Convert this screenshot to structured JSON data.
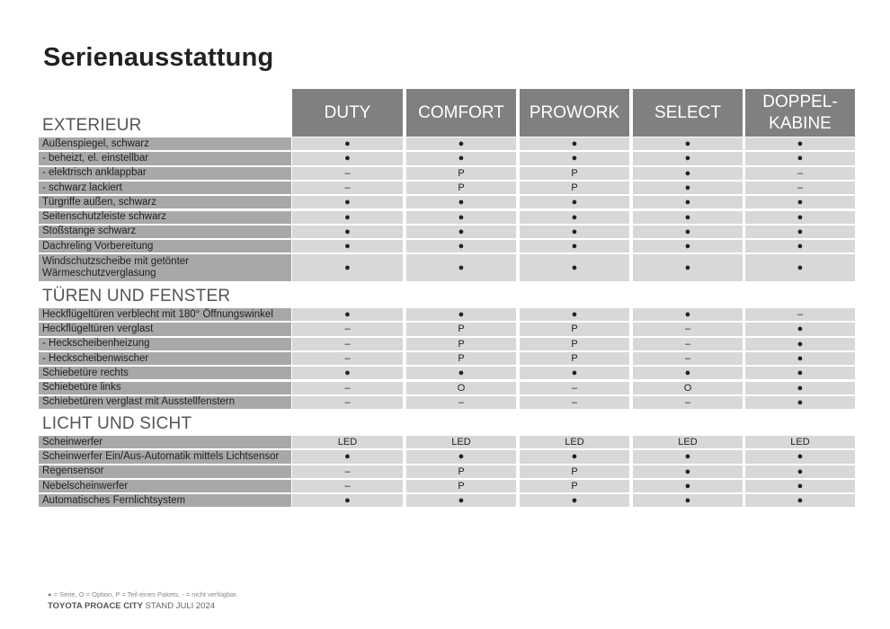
{
  "title": "Serienausstattung",
  "columns": [
    "DUTY",
    "COMFORT",
    "PROWORK",
    "SELECT",
    "DOPPEL-\nKABINE"
  ],
  "sections": [
    {
      "heading": "EXTERIEUR",
      "rows": [
        {
          "label": "Außenspiegel, schwarz",
          "values": [
            "●",
            "●",
            "●",
            "●",
            "●"
          ]
        },
        {
          "label": "- beheizt, el. einstellbar",
          "values": [
            "●",
            "●",
            "●",
            "●",
            "●"
          ]
        },
        {
          "label": "- elektrisch anklappbar",
          "values": [
            "–",
            "P",
            "P",
            "●",
            "–"
          ]
        },
        {
          "label": "- schwarz lackiert",
          "values": [
            "–",
            "P",
            "P",
            "●",
            "–"
          ]
        },
        {
          "label": "Türgriffe außen, schwarz",
          "values": [
            "●",
            "●",
            "●",
            "●",
            "●"
          ]
        },
        {
          "label": "Seitenschutzleiste schwarz",
          "values": [
            "●",
            "●",
            "●",
            "●",
            "●"
          ]
        },
        {
          "label": "Stoßstange schwarz",
          "values": [
            "●",
            "●",
            "●",
            "●",
            "●"
          ]
        },
        {
          "label": "Dachreling Vorbereitung",
          "values": [
            "●",
            "●",
            "●",
            "●",
            "●"
          ]
        },
        {
          "label": "Windschutzscheibe mit getönter\nWärmeschutzverglasung",
          "values": [
            "●",
            "●",
            "●",
            "●",
            "●"
          ]
        }
      ]
    },
    {
      "heading": "TÜREN UND FENSTER",
      "rows": [
        {
          "label": "Heckflügeltüren verblecht mit 180° Öffnungswinkel",
          "values": [
            "●",
            "●",
            "●",
            "●",
            "–"
          ]
        },
        {
          "label": "Heckflügeltüren verglast",
          "values": [
            "–",
            "P",
            "P",
            "–",
            "●"
          ]
        },
        {
          "label": "- Heckscheibenheizung",
          "values": [
            "–",
            "P",
            "P",
            "–",
            "●"
          ]
        },
        {
          "label": "- Heckscheibenwischer",
          "values": [
            "–",
            "P",
            "P",
            "–",
            "●"
          ]
        },
        {
          "label": "Schiebetüre rechts",
          "values": [
            "●",
            "●",
            "●",
            "●",
            "●"
          ]
        },
        {
          "label": "Schiebetüre links",
          "values": [
            "–",
            "O",
            "–",
            "O",
            "●"
          ]
        },
        {
          "label": "Schiebetüren verglast mit Ausstellfenstern",
          "values": [
            "–",
            "–",
            "–",
            "–",
            "●"
          ]
        }
      ]
    },
    {
      "heading": "LICHT UND SICHT",
      "rows": [
        {
          "label": "Scheinwerfer",
          "values": [
            "LED",
            "LED",
            "LED",
            "LED",
            "LED"
          ]
        },
        {
          "label": "Scheinwerfer Ein/Aus-Automatik mittels Lichtsensor",
          "values": [
            "●",
            "●",
            "●",
            "●",
            "●"
          ]
        },
        {
          "label": "Regensensor",
          "values": [
            "–",
            "P",
            "P",
            "●",
            "●"
          ]
        },
        {
          "label": "Nebelscheinwerfer",
          "values": [
            "–",
            "P",
            "P",
            "●",
            "●"
          ]
        },
        {
          "label": "Automatisches Fernlichtsystem",
          "values": [
            "●",
            "●",
            "●",
            "●",
            "●"
          ]
        }
      ]
    }
  ],
  "legend": "● = Serie, O = Option, P = Teil eines Pakets, - = nicht verfügbar.",
  "footer": {
    "brand": "TOYOTA PROACE CITY",
    "stand": "STAND JULI 2024"
  },
  "colors": {
    "header_bg": "#808080",
    "label_bg": "#a8a8a8",
    "cell_bg": "#d8d8d8"
  }
}
